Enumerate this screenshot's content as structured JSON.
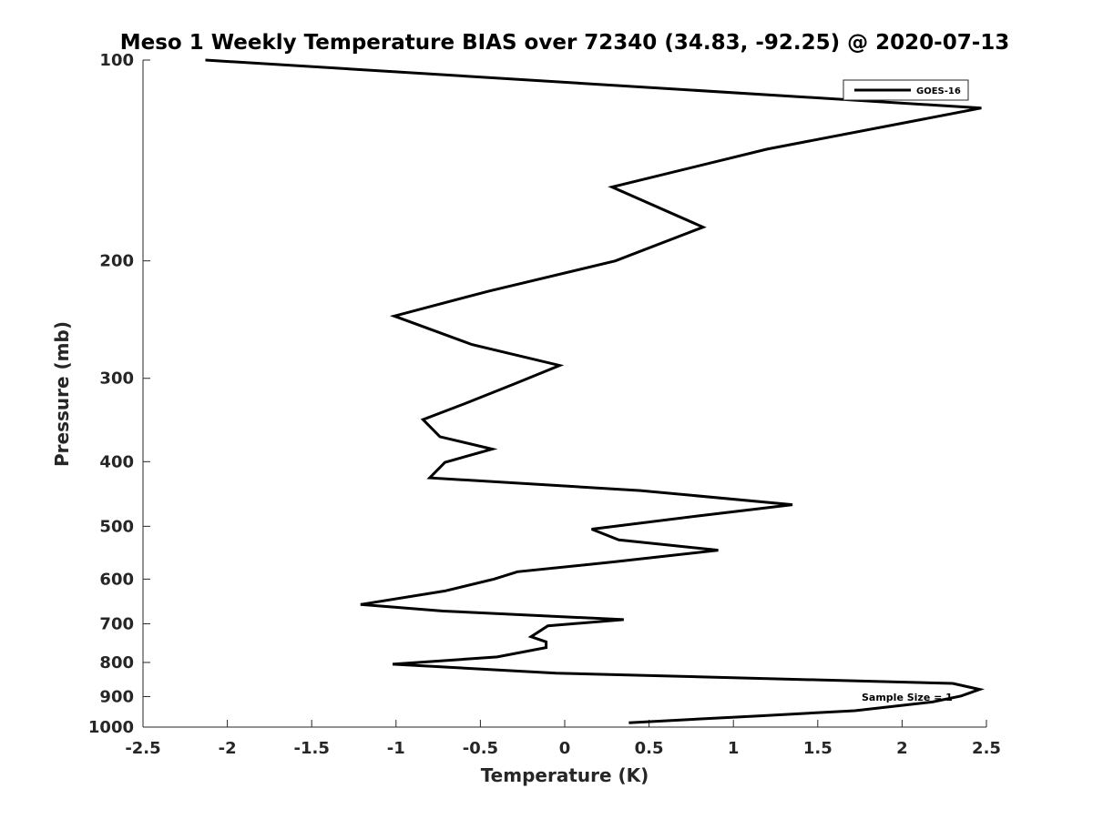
{
  "chart_data": {
    "type": "line",
    "title": "Meso 1 Weekly Temperature BIAS over 72340 (34.83, -92.25) @ 2020-07-13",
    "xlabel": "Temperature (K)",
    "ylabel": "Pressure (mb)",
    "xlim": [
      -2.5,
      2.5
    ],
    "ylim": [
      100,
      1000
    ],
    "y_scale": "log",
    "y_reversed": true,
    "grid": false,
    "legend_position": "top-right",
    "xticks": [
      -2.5,
      -2,
      -1.5,
      -1,
      -0.5,
      0,
      0.5,
      1,
      1.5,
      2,
      2.5
    ],
    "xtick_labels": [
      "-2.5",
      "-2",
      "-1.5",
      "-1",
      "-0.5",
      "0",
      "0.5",
      "1",
      "1.5",
      "2",
      "2.5"
    ],
    "yticks": [
      100,
      200,
      300,
      400,
      500,
      600,
      700,
      800,
      900,
      1000
    ],
    "ytick_labels": [
      "100",
      "200",
      "300",
      "400",
      "500",
      "600",
      "700",
      "800",
      "900",
      "1000"
    ],
    "annotation": "Sample Size = 1",
    "series": [
      {
        "name": "GOES-16",
        "color": "#000000",
        "points": [
          [
            -2.13,
            100
          ],
          [
            2.47,
            118
          ],
          [
            1.2,
            136
          ],
          [
            0.28,
            155
          ],
          [
            0.82,
            178
          ],
          [
            0.3,
            200
          ],
          [
            -0.45,
            222
          ],
          [
            -1.01,
            242
          ],
          [
            -0.55,
            267
          ],
          [
            -0.03,
            287
          ],
          [
            -0.3,
            306
          ],
          [
            -0.6,
            328
          ],
          [
            -0.84,
            346
          ],
          [
            -0.74,
            367
          ],
          [
            -0.43,
            383
          ],
          [
            -0.71,
            401
          ],
          [
            -0.8,
            423
          ],
          [
            0.45,
            442
          ],
          [
            1.35,
            464
          ],
          [
            0.8,
            482
          ],
          [
            0.16,
            505
          ],
          [
            0.32,
            524
          ],
          [
            0.91,
            543
          ],
          [
            0.3,
            565
          ],
          [
            -0.28,
            585
          ],
          [
            -0.42,
            600
          ],
          [
            -0.71,
            625
          ],
          [
            -1.21,
            655
          ],
          [
            -0.72,
            670
          ],
          [
            0.35,
            690
          ],
          [
            -0.1,
            705
          ],
          [
            -0.2,
            732
          ],
          [
            -0.11,
            745
          ],
          [
            -0.11,
            760
          ],
          [
            -0.4,
            785
          ],
          [
            -1.02,
            805
          ],
          [
            -0.05,
            830
          ],
          [
            2.3,
            860
          ],
          [
            2.46,
            878
          ],
          [
            2.35,
            898
          ],
          [
            2.18,
            917
          ],
          [
            1.72,
            945
          ],
          [
            1.15,
            962
          ],
          [
            0.38,
            985
          ]
        ]
      }
    ]
  }
}
